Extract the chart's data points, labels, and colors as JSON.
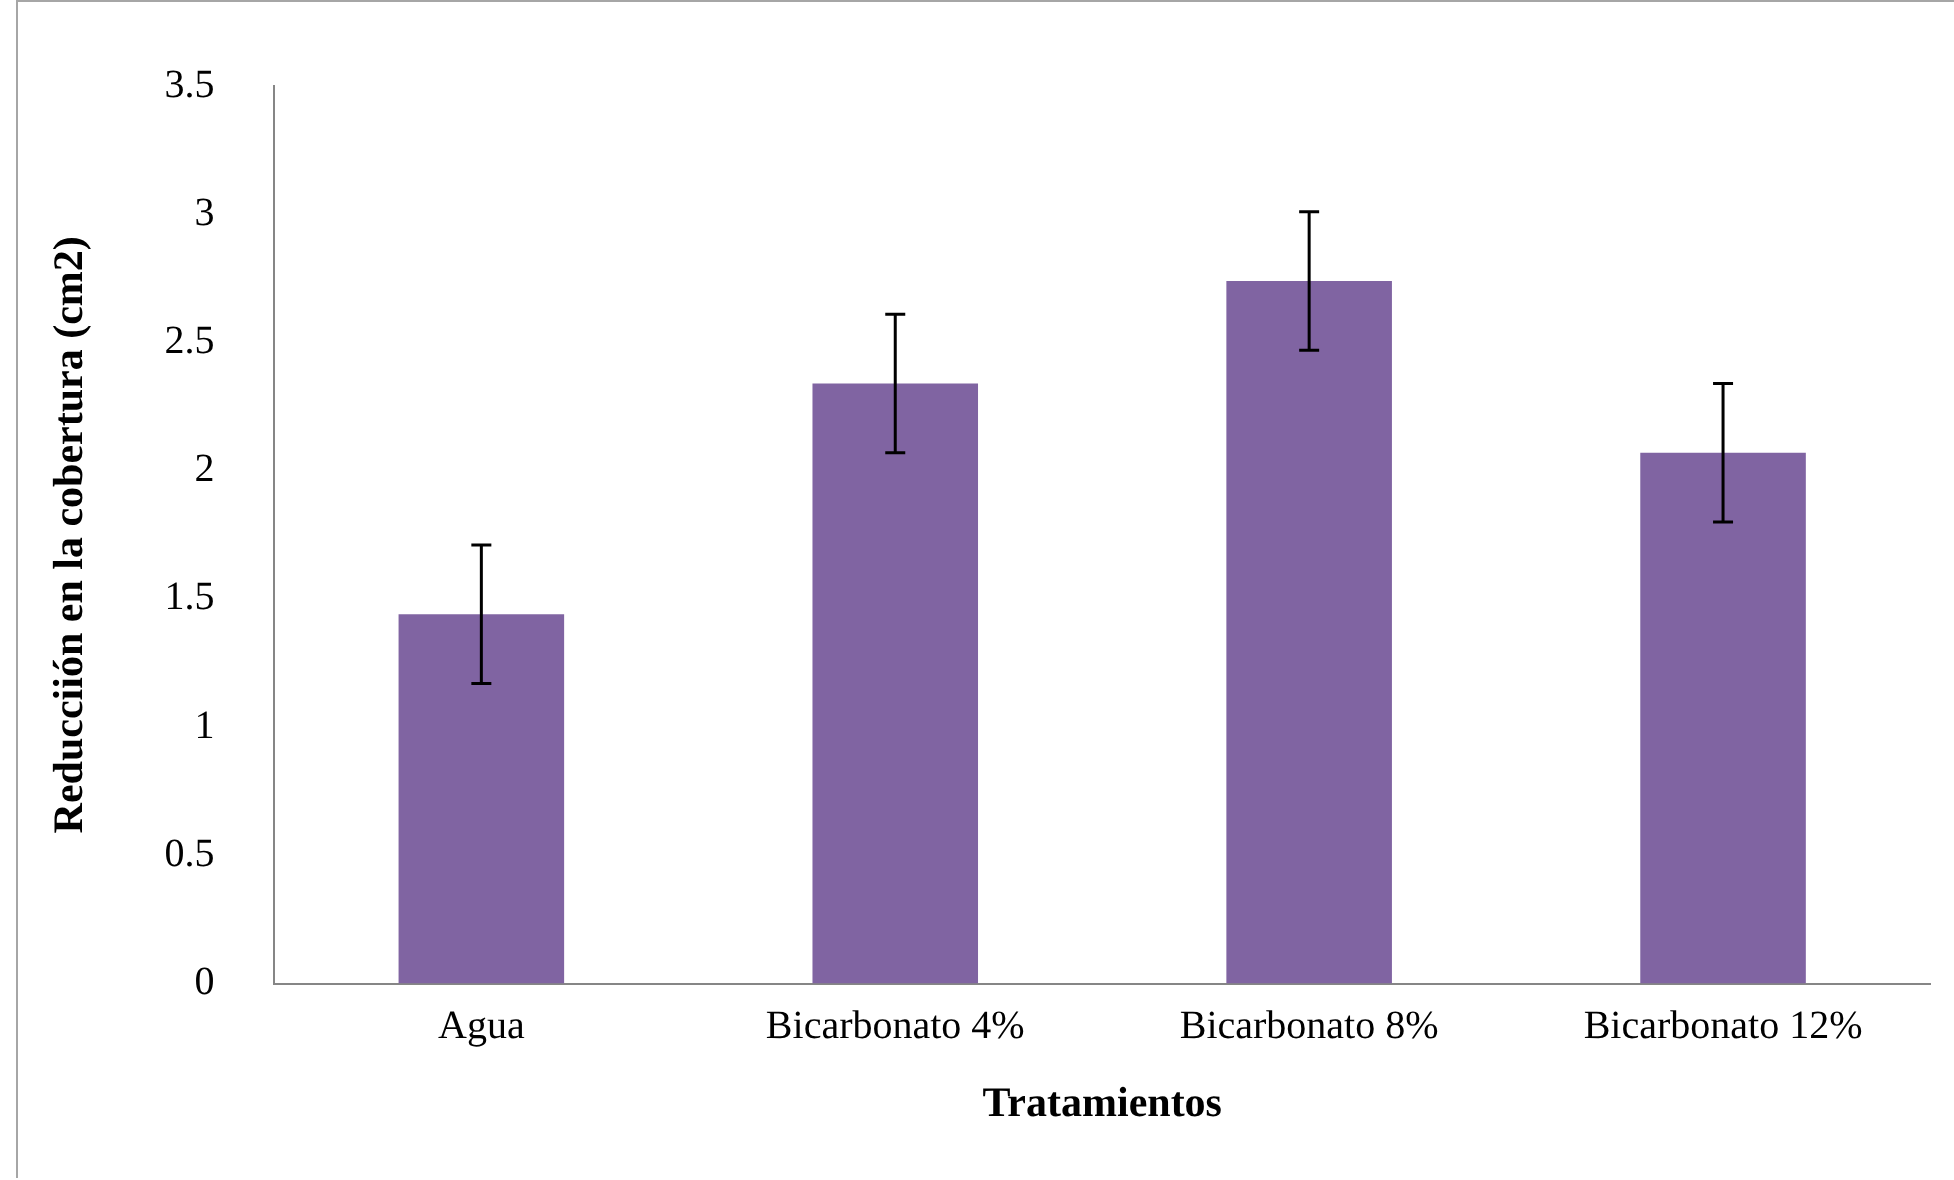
{
  "chart_data": {
    "type": "bar",
    "xlabel": "Tratamientos",
    "ylabel": "Reducciión en la cobertura (cm2)",
    "categories": [
      "Agua",
      "Bicarbonato 4%",
      "Bicarbonato 8%",
      "Bicarbonato 12%"
    ],
    "values": [
      1.44,
      2.34,
      2.74,
      2.07
    ],
    "errors": [
      0.27,
      0.27,
      0.27,
      0.27
    ],
    "color": "#8064a2",
    "ylim": [
      0,
      3.5
    ],
    "yticks": [
      0,
      0.5,
      1,
      1.5,
      2,
      2.5,
      3,
      3.5
    ],
    "grid": false,
    "legend": false
  }
}
